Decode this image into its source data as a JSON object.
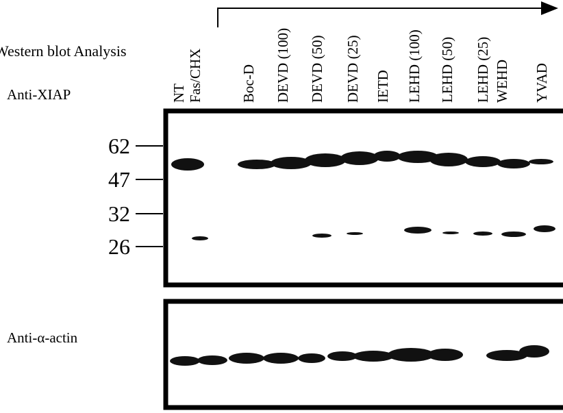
{
  "figure": {
    "title": "Western blot Analysis",
    "panels": [
      {
        "label": "Anti-XIAP",
        "markers": [
          "62",
          "47",
          "32",
          "26"
        ]
      },
      {
        "label": "Anti-α-actin"
      }
    ],
    "lanes": [
      "NT",
      "Fas/CHX",
      "Boc-D",
      "DEVD (100)",
      "DEVD (50)",
      "DEVD (25)",
      "IETD",
      "LEHD (100)",
      "LEHD (50)",
      "LEHD (25)",
      "WEHD",
      "YVAD"
    ]
  }
}
